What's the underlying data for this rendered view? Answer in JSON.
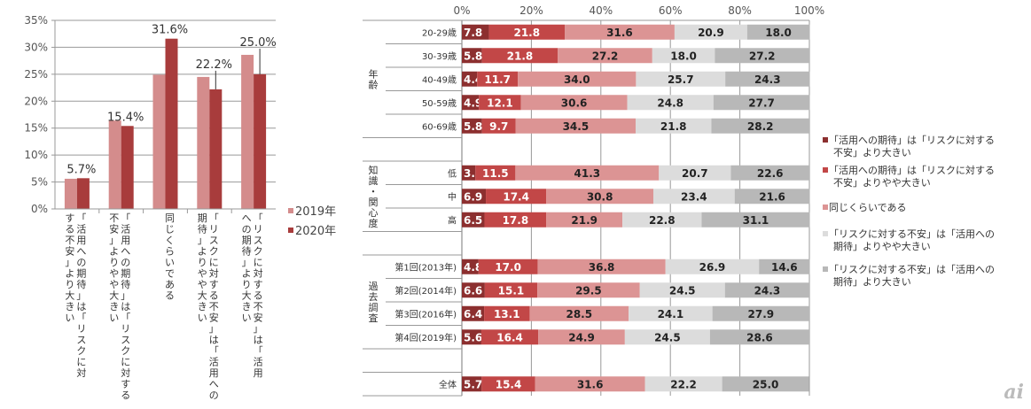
{
  "chart_data": [
    {
      "type": "bar",
      "title": "",
      "xlabel": "",
      "ylabel": "",
      "ylim": [
        0,
        35
      ],
      "yticks": [
        "0%",
        "5%",
        "10%",
        "15%",
        "20%",
        "25%",
        "30%",
        "35%"
      ],
      "grid": true,
      "legend_position": "right",
      "categories": [
        "「活用への期待」は「リスクに対する不安」より大きい",
        "「活用への期待」は「リスクに対する不安」よりやや大きい",
        "同じくらいである",
        "「リスクに対する不安」は「活用への期待」よりやや大きい",
        "「リスクに対する不安」は「活用への期待」より大きい"
      ],
      "series": [
        {
          "name": "2019年",
          "color": "#d48c8c",
          "values": [
            5.6,
            16.4,
            24.9,
            24.5,
            28.6
          ]
        },
        {
          "name": "2020年",
          "color": "#a83c3c",
          "values": [
            5.7,
            15.4,
            31.6,
            22.2,
            25.0
          ]
        }
      ],
      "data_labels": [
        "5.7%",
        "15.4%",
        "31.6%",
        "22.2%",
        "25.0%"
      ]
    },
    {
      "type": "bar",
      "orientation": "horizontal-stacked-100",
      "xlim": [
        0,
        100
      ],
      "xticks": [
        "0%",
        "20%",
        "40%",
        "60%",
        "80%",
        "100%"
      ],
      "grid": true,
      "legend_position": "right",
      "series": [
        {
          "name": "「活用への期待」は「リスクに対する不安」より大きい",
          "color": "#8c2f2f",
          "text_color": "#ffffff"
        },
        {
          "name": "「活用への期待」は「リスクに対する不安」よりやや大きい",
          "color": "#c24747",
          "text_color": "#ffffff"
        },
        {
          "name": "同じくらいである",
          "color": "#dc9494",
          "text_color": "#222222"
        },
        {
          "name": "「リスクに対する不安」は「活用への期待」よりやや大きい",
          "color": "#dcdcdc",
          "text_color": "#222222"
        },
        {
          "name": "「リスクに対する不安」は「活用への期待」より大きい",
          "color": "#b8b8b8",
          "text_color": "#222222"
        }
      ],
      "groups": [
        {
          "name": "年齢",
          "rows": [
            {
              "label": "20-29歳",
              "values": [
                7.8,
                21.8,
                31.6,
                20.9,
                18.0
              ]
            },
            {
              "label": "30-39歳",
              "values": [
                5.8,
                21.8,
                27.2,
                18.0,
                27.2
              ]
            },
            {
              "label": "40-49歳",
              "values": [
                4.4,
                11.7,
                34.0,
                25.7,
                24.3
              ]
            },
            {
              "label": "50-59歳",
              "values": [
                4.9,
                12.1,
                30.6,
                24.8,
                27.7
              ]
            },
            {
              "label": "60-69歳",
              "values": [
                5.8,
                9.7,
                34.5,
                21.8,
                28.2
              ]
            }
          ]
        },
        {
          "name": "知識・関心度",
          "rows": [
            {
              "label": "低",
              "values": [
                3.9,
                11.5,
                41.3,
                20.7,
                22.6
              ]
            },
            {
              "label": "中",
              "values": [
                6.9,
                17.4,
                30.8,
                23.4,
                21.6
              ]
            },
            {
              "label": "高",
              "values": [
                6.5,
                17.8,
                21.9,
                22.8,
                31.1
              ]
            }
          ]
        },
        {
          "name": "過去調査",
          "rows": [
            {
              "label": "第1回(2013年)",
              "values": [
                4.8,
                17.0,
                36.8,
                26.9,
                14.6
              ]
            },
            {
              "label": "第2回(2014年)",
              "values": [
                6.6,
                15.1,
                29.5,
                24.5,
                24.3
              ]
            },
            {
              "label": "第3回(2016年)",
              "values": [
                6.4,
                13.1,
                28.5,
                24.1,
                27.9
              ]
            },
            {
              "label": "第4回(2019年)",
              "values": [
                5.6,
                16.4,
                24.9,
                24.5,
                28.6
              ]
            }
          ]
        },
        {
          "name": "",
          "rows": [
            {
              "label": "全体",
              "values": [
                5.7,
                15.4,
                31.6,
                22.2,
                25.0
              ]
            }
          ]
        }
      ],
      "legend_lines": [
        [
          "「活用への期待」は「リスクに対する",
          "不安」より大きい"
        ],
        [
          "「活用への期待」は「リスクに対する",
          "不安」よりやや大きい"
        ],
        [
          "同じくらいである"
        ],
        [
          "「リスクに対する不安」は「活用への",
          "期待」よりやや大きい"
        ],
        [
          "「リスクに対する不安」は「活用への",
          "期待」より大きい"
        ]
      ]
    }
  ],
  "logo": {
    "text": "ai"
  }
}
